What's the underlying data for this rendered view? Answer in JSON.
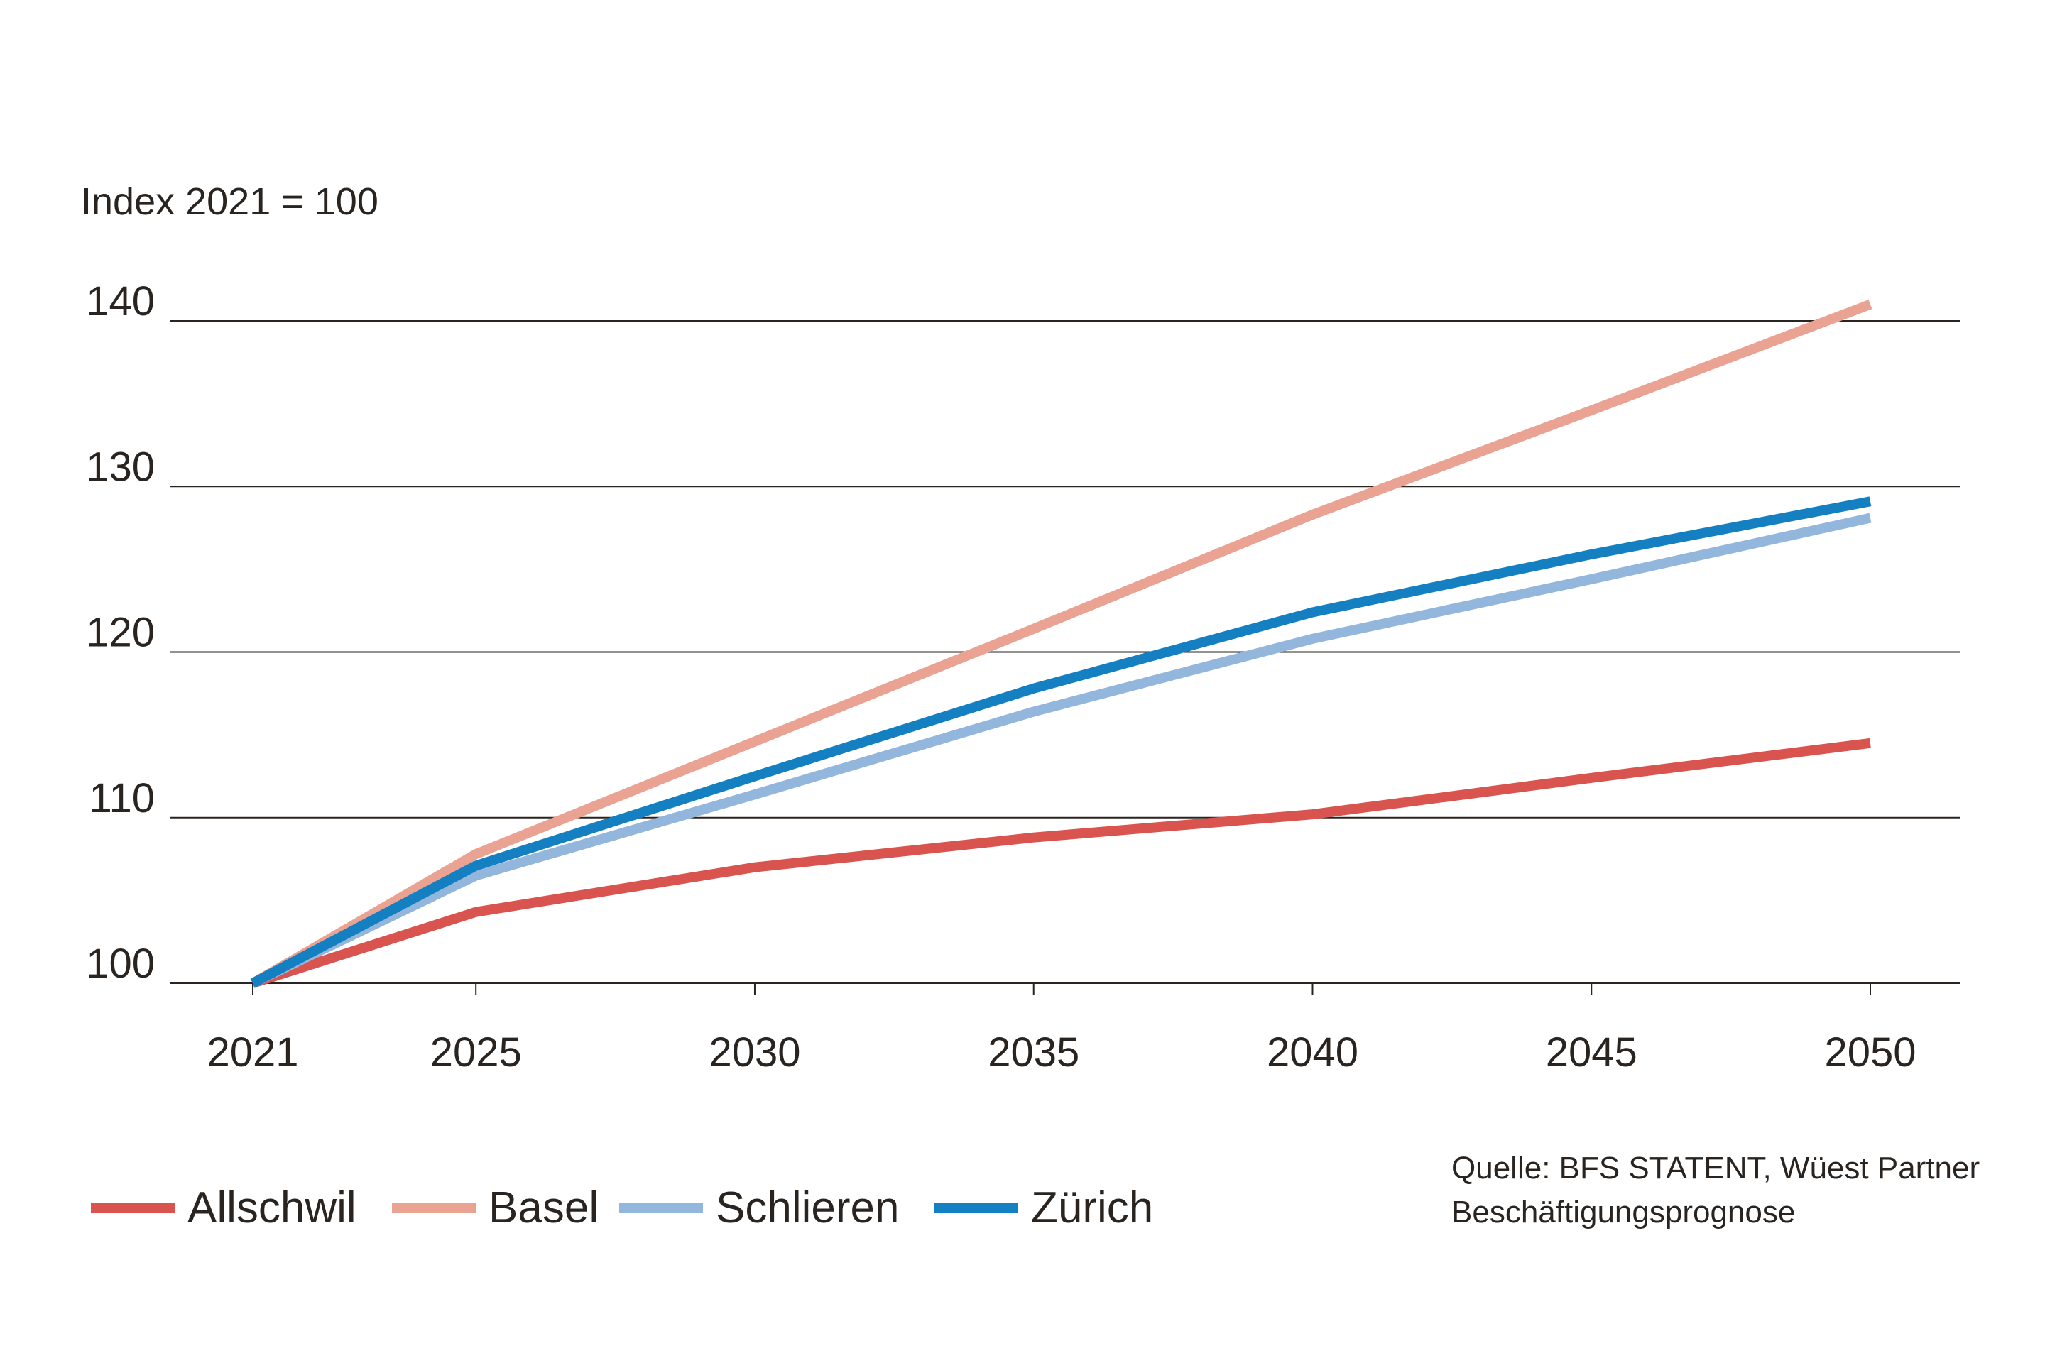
{
  "chart_data": {
    "type": "line",
    "ylabel": "Index 2021 = 100",
    "x": [
      2021,
      2025,
      2030,
      2035,
      2040,
      2045,
      2050
    ],
    "x_tick_labels": [
      "2021",
      "2025",
      "2030",
      "2035",
      "2040",
      "2045",
      "2050"
    ],
    "y_ticks": [
      100,
      110,
      120,
      130,
      140
    ],
    "y_tick_labels": [
      "100",
      "110",
      "120",
      "130",
      "140"
    ],
    "ylim": [
      100,
      140
    ],
    "grid": "horizontal",
    "legend_position": "bottom-left",
    "series": [
      {
        "name": "Allschwil",
        "color": "#d9534f",
        "values": [
          100,
          104.3,
          107,
          108.8,
          110.2,
          112.4,
          114.5
        ]
      },
      {
        "name": "Basel",
        "color": "#eaa393",
        "values": [
          100,
          107.8,
          114.6,
          121.4,
          128.3,
          134.6,
          141
        ]
      },
      {
        "name": "Schlieren",
        "color": "#92b6dc",
        "values": [
          100,
          106.5,
          111.4,
          116.4,
          120.8,
          124.4,
          128.1
        ]
      },
      {
        "name": "Zürich",
        "color": "#1580c1",
        "values": [
          100,
          107.1,
          112.5,
          117.8,
          122.4,
          125.9,
          129.1
        ]
      }
    ],
    "source": [
      "Quelle: BFS STATENT, Wüest Partner",
      "Beschäftigungsprognose"
    ]
  }
}
